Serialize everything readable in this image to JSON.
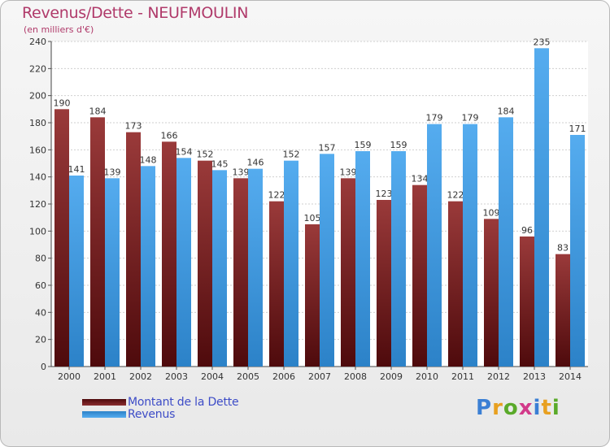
{
  "title": "Revenus/Dette - NEUFMOULIN",
  "subtitle": "(en milliers d'€)",
  "colors": {
    "title": "#b03a6a",
    "dette": "#7a1f22",
    "revenus": "#3e9be0",
    "legend_text": "#3d4cc7"
  },
  "chart_data": {
    "type": "bar",
    "title": "Revenus/Dette - NEUFMOULIN",
    "subtitle": "(en milliers d'€)",
    "categories": [
      "2000",
      "2001",
      "2002",
      "2003",
      "2004",
      "2005",
      "2006",
      "2007",
      "2008",
      "2009",
      "2010",
      "2011",
      "2012",
      "2013",
      "2014"
    ],
    "series": [
      {
        "name": "Montant de la Dette",
        "values": [
          190,
          184,
          173,
          166,
          152,
          139,
          122,
          105,
          139,
          123,
          134,
          122,
          109,
          96,
          83
        ]
      },
      {
        "name": "Revenus",
        "values": [
          141,
          139,
          148,
          154,
          145,
          146,
          152,
          157,
          159,
          159,
          179,
          179,
          184,
          235,
          171
        ]
      }
    ],
    "ylim": [
      0,
      240
    ],
    "yticks": [
      0,
      20,
      40,
      60,
      80,
      100,
      120,
      140,
      160,
      180,
      200,
      220,
      240
    ],
    "grid": true,
    "legend": "bottom-left"
  },
  "legend": {
    "items": [
      {
        "label": "Montant de la Dette",
        "color": "#7a1f22"
      },
      {
        "label": "Revenus",
        "color": "#3e9be0"
      }
    ]
  },
  "logo": {
    "text": "Proxiti",
    "letters": [
      "P",
      "r",
      "o",
      "x",
      "i",
      "t",
      "i"
    ],
    "colors": [
      "#3b7fd4",
      "#e8a020",
      "#5aaa2a",
      "#d23a8a",
      "#3b7fd4",
      "#e8a020",
      "#5aaa2a"
    ]
  }
}
